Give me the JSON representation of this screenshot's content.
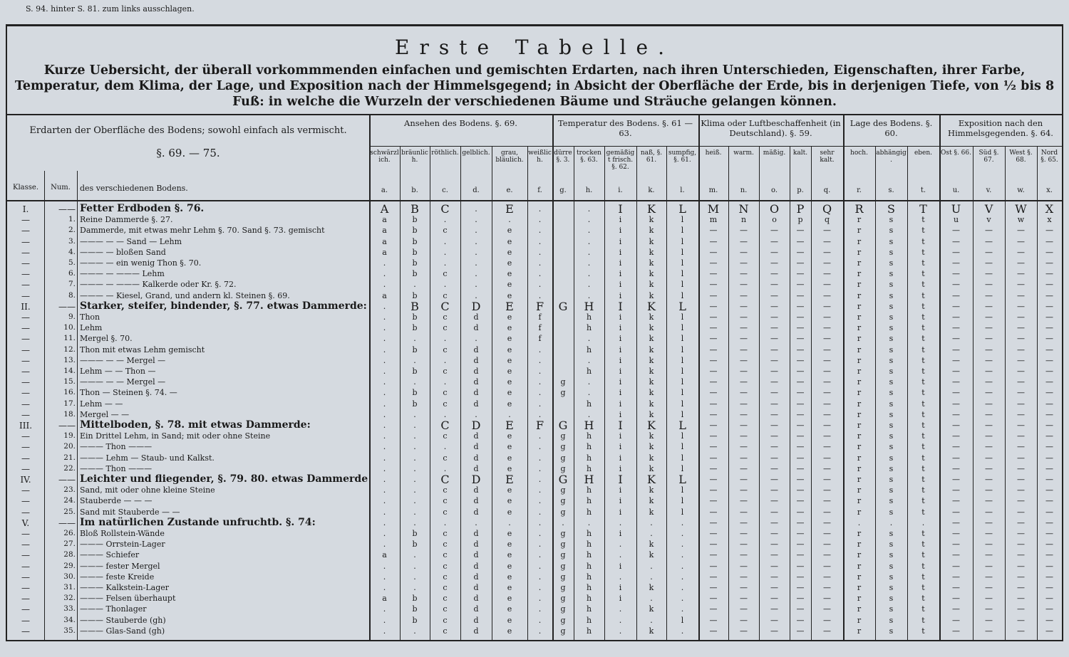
{
  "top_note": "S. 94. hinter S. 81. zum links ausschlagen.",
  "title": "Erste Tabelle.",
  "subtitle": "Kurze Uebersicht, der überall vorkommmenden einfachen und gemischten Erdarten, nach ihren Unterschieden, Eigenschaften, ihrer Farbe, Temperatur, dem Klima, der Lage, und Exposition nach der Himmelsgegend; in Absicht der Oberfläche der Erde, bis in derjenigen Tiefe, von ½ bis 8 Fuß: in welche die Wurzeln der verschiedenen Bäume und Sträuche gelangen können.",
  "left_header": {
    "title": "Erdarten der Oberfläche des Bodens; sowohl einfach als vermischt.",
    "sections": "§. 69. — 75.",
    "klasse": "Klasse.",
    "num": "Num.",
    "desc": "des verschiedenen Bodens."
  },
  "groups": [
    {
      "label": "Ansehen des Bodens. §. 69.",
      "from": 0,
      "to": 6
    },
    {
      "label": "Temperatur des Bodens. §. 61 — 63.",
      "from": 6,
      "to": 11
    },
    {
      "label": "Klima oder Luftbeschaffenheit (in Deutschland). §. 59.",
      "from": 11,
      "to": 16
    },
    {
      "label": "Lage des Bodens. §. 60.",
      "from": 16,
      "to": 19
    },
    {
      "label": "Exposition nach den Himmelsgegenden. §. 64.",
      "from": 19,
      "to": 23
    }
  ],
  "columns": [
    {
      "name": "schwärzlich.",
      "letter": "a."
    },
    {
      "name": "bräunlich.",
      "letter": "b."
    },
    {
      "name": "röthlich.",
      "letter": "c."
    },
    {
      "name": "gelblich.",
      "letter": "d."
    },
    {
      "name": "grau, bläulich.",
      "letter": "e."
    },
    {
      "name": "weißlich.",
      "letter": "f."
    },
    {
      "name": "dürre §. 3.",
      "letter": "g."
    },
    {
      "name": "trocken §. 63.",
      "letter": "h."
    },
    {
      "name": "gemäßigt frisch. §. 62.",
      "letter": "i."
    },
    {
      "name": "naß, §. 61.",
      "letter": "k."
    },
    {
      "name": "sumpfig, §. 61.",
      "letter": "l."
    },
    {
      "name": "heiß.",
      "letter": "m."
    },
    {
      "name": "warm.",
      "letter": "n."
    },
    {
      "name": "mäßig.",
      "letter": "o."
    },
    {
      "name": "kalt.",
      "letter": "p."
    },
    {
      "name": "sehr kalt.",
      "letter": "q."
    },
    {
      "name": "hoch.",
      "letter": "r."
    },
    {
      "name": "abhängig.",
      "letter": "s."
    },
    {
      "name": "eben.",
      "letter": "t."
    },
    {
      "name": "Ost §. 66.",
      "letter": "u."
    },
    {
      "name": "Süd §. 67.",
      "letter": "v."
    },
    {
      "name": "West §. 68.",
      "letter": "w."
    },
    {
      "name": "Nord §. 65.",
      "letter": "x."
    }
  ],
  "rows": [
    {
      "klasse": "I.",
      "num": "——",
      "text": "Fetter Erdboden §. 76.",
      "cells": [
        "A",
        "B",
        "C",
        ".",
        "E",
        ".",
        null,
        ".",
        "I",
        "K",
        "L",
        "M",
        "N",
        "O",
        "P",
        "Q",
        "R",
        "S",
        "T",
        "U",
        "V",
        "W",
        "X"
      ]
    },
    {
      "klasse": "—",
      "num": "1.",
      "text": "Reine Dammerde §. 27.",
      "cells": [
        "a",
        "b",
        ".",
        ".",
        ".",
        ".",
        null,
        ".",
        "i",
        "k",
        "l",
        "m",
        "n",
        "o",
        "p",
        "q",
        "r",
        "s",
        "t",
        "u",
        "v",
        "w",
        "x"
      ]
    },
    {
      "klasse": "—",
      "num": "2.",
      "text": "Dammerde, mit etwas mehr Lehm §. 70. Sand §. 73. gemischt",
      "cells": [
        "a",
        "b",
        "c",
        ".",
        "e",
        ".",
        null,
        ".",
        "i",
        "k",
        "l",
        "—",
        "—",
        "—",
        "—",
        "—",
        "r",
        "s",
        "t",
        "—",
        "—",
        "—",
        "—"
      ]
    },
    {
      "klasse": "—",
      "num": "3.",
      "text": "——— — — Sand — Lehm",
      "cells": [
        "a",
        "b",
        ".",
        ".",
        "e",
        ".",
        null,
        ".",
        "i",
        "k",
        "l",
        "—",
        "—",
        "—",
        "—",
        "—",
        "r",
        "s",
        "t",
        "—",
        "—",
        "—",
        "—"
      ]
    },
    {
      "klasse": "—",
      "num": "4.",
      "text": "——— — bloßen Sand",
      "cells": [
        "a",
        "b",
        ".",
        ".",
        "e",
        ".",
        null,
        ".",
        "i",
        "k",
        "l",
        "—",
        "—",
        "—",
        "—",
        "—",
        "r",
        "s",
        "t",
        "—",
        "—",
        "—",
        "—"
      ]
    },
    {
      "klasse": "—",
      "num": "5.",
      "text": "——— — ein wenig Thon §. 70.",
      "cells": [
        ".",
        "b",
        ".",
        ".",
        "e",
        ".",
        null,
        ".",
        "i",
        "k",
        "l",
        "—",
        "—",
        "—",
        "—",
        "—",
        "r",
        "s",
        "t",
        "—",
        "—",
        "—",
        "—"
      ]
    },
    {
      "klasse": "—",
      "num": "6.",
      "text": "——— — ——— Lehm",
      "cells": [
        ".",
        "b",
        "c",
        ".",
        "e",
        ".",
        null,
        ".",
        "i",
        "k",
        "l",
        "—",
        "—",
        "—",
        "—",
        "—",
        "r",
        "s",
        "t",
        "—",
        "—",
        "—",
        "—"
      ]
    },
    {
      "klasse": "—",
      "num": "7.",
      "text": "——— — ——— Kalkerde oder Kr. §. 72.",
      "cells": [
        ".",
        ".",
        ".",
        ".",
        "e",
        ".",
        null,
        ".",
        "i",
        "k",
        "l",
        "—",
        "—",
        "—",
        "—",
        "—",
        "r",
        "s",
        "t",
        "—",
        "—",
        "—",
        "—"
      ]
    },
    {
      "klasse": "—",
      "num": "8.",
      "text": "——— — Kiesel, Grand, und andern kl. Steinen §. 69.",
      "cells": [
        "a",
        "b",
        "c",
        ".",
        "e",
        ".",
        null,
        ".",
        "i",
        "k",
        "l",
        "—",
        "—",
        "—",
        "—",
        "—",
        "r",
        "s",
        "t",
        "—",
        "—",
        "—",
        "—"
      ]
    },
    {
      "klasse": "II.",
      "num": "——",
      "text": "Starker, steifer, bindender, §. 77. etwas Dammerde:",
      "cells": [
        ".",
        "B",
        "C",
        "D",
        "E",
        "F",
        "G",
        "H",
        "I",
        "K",
        "L",
        "—",
        "—",
        "—",
        "—",
        "—",
        "r",
        "s",
        "t",
        "—",
        "—",
        "—",
        "—"
      ]
    },
    {
      "klasse": "—",
      "num": "9.",
      "text": "Thon",
      "cells": [
        ".",
        "b",
        "c",
        "d",
        "e",
        "f",
        null,
        "h",
        "i",
        "k",
        "l",
        "—",
        "—",
        "—",
        "—",
        "—",
        "r",
        "s",
        "t",
        "—",
        "—",
        "—",
        "—"
      ]
    },
    {
      "klasse": "—",
      "num": "10.",
      "text": "Lehm",
      "cells": [
        ".",
        "b",
        "c",
        "d",
        "e",
        "f",
        null,
        "h",
        "i",
        "k",
        "l",
        "—",
        "—",
        "—",
        "—",
        "—",
        "r",
        "s",
        "t",
        "—",
        "—",
        "—",
        "—"
      ]
    },
    {
      "klasse": "—",
      "num": "11.",
      "text": "Mergel §. 70.",
      "cells": [
        ".",
        ".",
        ".",
        ".",
        "e",
        "f",
        null,
        ".",
        "i",
        "k",
        "l",
        "—",
        "—",
        "—",
        "—",
        "—",
        "r",
        "s",
        "t",
        "—",
        "—",
        "—",
        "—"
      ]
    },
    {
      "klasse": "—",
      "num": "12.",
      "text": "Thon mit etwas Lehm gemischt",
      "cells": [
        ".",
        "b",
        "c",
        "d",
        "e",
        ".",
        null,
        "h",
        "i",
        "k",
        "l",
        "—",
        "—",
        "—",
        "—",
        "—",
        "r",
        "s",
        "t",
        "—",
        "—",
        "—",
        "—"
      ]
    },
    {
      "klasse": "—",
      "num": "13.",
      "text": "——— — — Mergel —",
      "cells": [
        ".",
        ".",
        ".",
        "d",
        "e",
        ".",
        null,
        ".",
        "i",
        "k",
        "l",
        "—",
        "—",
        "—",
        "—",
        "—",
        "r",
        "s",
        "t",
        "—",
        "—",
        "—",
        "—"
      ]
    },
    {
      "klasse": "—",
      "num": "14.",
      "text": "Lehm — — Thon —",
      "cells": [
        ".",
        "b",
        "c",
        "d",
        "e",
        ".",
        null,
        "h",
        "i",
        "k",
        "l",
        "—",
        "—",
        "—",
        "—",
        "—",
        "r",
        "s",
        "t",
        "—",
        "—",
        "—",
        "—"
      ]
    },
    {
      "klasse": "—",
      "num": "15.",
      "text": "——— — — Mergel —",
      "cells": [
        ".",
        ".",
        ".",
        "d",
        "e",
        ".",
        "g",
        ".",
        "i",
        "k",
        "l",
        "—",
        "—",
        "—",
        "—",
        "—",
        "r",
        "s",
        "t",
        "—",
        "—",
        "—",
        "—"
      ]
    },
    {
      "klasse": "—",
      "num": "16.",
      "text": "Thon — Steinen §. 74. —",
      "cells": [
        ".",
        "b",
        "c",
        "d",
        "e",
        ".",
        "g",
        ".",
        "i",
        "k",
        "l",
        "—",
        "—",
        "—",
        "—",
        "—",
        "r",
        "s",
        "t",
        "—",
        "—",
        "—",
        "—"
      ]
    },
    {
      "klasse": "—",
      "num": "17.",
      "text": "Lehm — —",
      "cells": [
        ".",
        "b",
        "c",
        "d",
        "e",
        ".",
        null,
        "h",
        "i",
        "k",
        "l",
        "—",
        "—",
        "—",
        "—",
        "—",
        "r",
        "s",
        "t",
        "—",
        "—",
        "—",
        "—"
      ]
    },
    {
      "klasse": "—",
      "num": "18.",
      "text": "Mergel — —",
      "cells": [
        ".",
        ".",
        ".",
        ".",
        ".",
        ".",
        null,
        ".",
        "i",
        "k",
        "l",
        "—",
        "—",
        "—",
        "—",
        "—",
        "r",
        "s",
        "t",
        "—",
        "—",
        "—",
        "—"
      ]
    },
    {
      "klasse": "III.",
      "num": "——",
      "text": "Mittelboden, §. 78. mit etwas Dammerde:",
      "cells": [
        ".",
        ".",
        "C",
        "D",
        "E",
        "F",
        "G",
        "H",
        "I",
        "K",
        "L",
        "—",
        "—",
        "—",
        "—",
        "—",
        "r",
        "s",
        "t",
        "—",
        "—",
        "—",
        "—"
      ]
    },
    {
      "klasse": "—",
      "num": "19.",
      "text": "Ein Drittel Lehm, in Sand; mit oder ohne Steine",
      "cells": [
        ".",
        ".",
        "c",
        "d",
        "e",
        ".",
        "g",
        "h",
        "i",
        "k",
        "l",
        "—",
        "—",
        "—",
        "—",
        "—",
        "r",
        "s",
        "t",
        "—",
        "—",
        "—",
        "—"
      ]
    },
    {
      "klasse": "—",
      "num": "20.",
      "text": "——— Thon ———",
      "cells": [
        ".",
        ".",
        ".",
        "d",
        "e",
        ".",
        "g",
        "h",
        "i",
        "k",
        "l",
        "—",
        "—",
        "—",
        "—",
        "—",
        "r",
        "s",
        "t",
        "—",
        "—",
        "—",
        "—"
      ]
    },
    {
      "klasse": "—",
      "num": "21.",
      "text": "——— Lehm — Staub- und Kalkst.",
      "cells": [
        ".",
        ".",
        "c",
        "d",
        "e",
        ".",
        "g",
        "h",
        "i",
        "k",
        "l",
        "—",
        "—",
        "—",
        "—",
        "—",
        "r",
        "s",
        "t",
        "—",
        "—",
        "—",
        "—"
      ]
    },
    {
      "klasse": "—",
      "num": "22.",
      "text": "——— Thon ———",
      "cells": [
        ".",
        ".",
        ".",
        "d",
        "e",
        ".",
        "g",
        "h",
        "i",
        "k",
        "l",
        "—",
        "—",
        "—",
        "—",
        "—",
        "r",
        "s",
        "t",
        "—",
        "—",
        "—",
        "—"
      ]
    },
    {
      "klasse": "IV.",
      "num": "——",
      "text": "Leichter und fliegender, §. 79. 80. etwas Dammerde:",
      "cells": [
        ".",
        ".",
        "C",
        "D",
        "E",
        ".",
        "G",
        "H",
        "I",
        "K",
        "L",
        "—",
        "—",
        "—",
        "—",
        "—",
        "r",
        "s",
        "t",
        "—",
        "—",
        "—",
        "—"
      ]
    },
    {
      "klasse": "—",
      "num": "23.",
      "text": "Sand, mit oder ohne kleine Steine",
      "cells": [
        ".",
        ".",
        "c",
        "d",
        "e",
        ".",
        "g",
        "h",
        "i",
        "k",
        "l",
        "—",
        "—",
        "—",
        "—",
        "—",
        "r",
        "s",
        "t",
        "—",
        "—",
        "—",
        "—"
      ]
    },
    {
      "klasse": "—",
      "num": "24.",
      "text": "Stauberde — — —",
      "cells": [
        ".",
        ".",
        "c",
        "d",
        "e",
        ".",
        "g",
        "h",
        "i",
        "k",
        "l",
        "—",
        "—",
        "—",
        "—",
        "—",
        "r",
        "s",
        "t",
        "—",
        "—",
        "—",
        "—"
      ]
    },
    {
      "klasse": "—",
      "num": "25.",
      "text": "Sand mit Stauberde — —",
      "cells": [
        ".",
        ".",
        "c",
        "d",
        "e",
        ".",
        "g",
        "h",
        "i",
        "k",
        "l",
        "—",
        "—",
        "—",
        "—",
        "—",
        "r",
        "s",
        "t",
        "—",
        "—",
        "—",
        "—"
      ]
    },
    {
      "klasse": "V.",
      "num": "——",
      "text": "Im natürlichen Zustande unfruchtb. §. 74:",
      "cells": [
        ".",
        ".",
        ".",
        ".",
        ".",
        ".",
        ".",
        ".",
        ".",
        ".",
        ".",
        "—",
        "—",
        "—",
        "—",
        "—",
        ".",
        ".",
        ".",
        "—",
        "—",
        "—",
        "—"
      ]
    },
    {
      "klasse": "—",
      "num": "26.",
      "text": "Bloß Rollstein-Wände",
      "cells": [
        ".",
        "b",
        "c",
        "d",
        "e",
        ".",
        "g",
        "h",
        "i",
        ".",
        ".",
        "—",
        "—",
        "—",
        "—",
        "—",
        "r",
        "s",
        "t",
        "—",
        "—",
        "—",
        "—"
      ]
    },
    {
      "klasse": "—",
      "num": "27.",
      "text": "——— Orrstein-Lager",
      "cells": [
        ".",
        "b",
        "c",
        "d",
        "e",
        ".",
        "g",
        "h",
        ".",
        "k",
        ".",
        "—",
        "—",
        "—",
        "—",
        "—",
        "r",
        "s",
        "t",
        "—",
        "—",
        "—",
        "—"
      ]
    },
    {
      "klasse": "—",
      "num": "28.",
      "text": "——— Schiefer",
      "cells": [
        "a",
        ".",
        "c",
        "d",
        "e",
        ".",
        "g",
        "h",
        ".",
        "k",
        ".",
        "—",
        "—",
        "—",
        "—",
        "—",
        "r",
        "s",
        "t",
        "—",
        "—",
        "—",
        "—"
      ]
    },
    {
      "klasse": "—",
      "num": "29.",
      "text": "——— fester Mergel",
      "cells": [
        ".",
        ".",
        "c",
        "d",
        "e",
        ".",
        "g",
        "h",
        "i",
        ".",
        ".",
        "—",
        "—",
        "—",
        "—",
        "—",
        "r",
        "s",
        "t",
        "—",
        "—",
        "—",
        "—"
      ]
    },
    {
      "klasse": "—",
      "num": "30.",
      "text": "——— feste Kreide",
      "cells": [
        ".",
        ".",
        "c",
        "d",
        "e",
        ".",
        "g",
        "h",
        ".",
        ".",
        ".",
        "—",
        "—",
        "—",
        "—",
        "—",
        "r",
        "s",
        "t",
        "—",
        "—",
        "—",
        "—"
      ]
    },
    {
      "klasse": "—",
      "num": "31.",
      "text": "——— Kalkstein-Lager",
      "cells": [
        ".",
        ".",
        "c",
        "d",
        "e",
        ".",
        "g",
        "h",
        "i",
        "k",
        ".",
        "—",
        "—",
        "—",
        "—",
        "—",
        "r",
        "s",
        "t",
        "—",
        "—",
        "—",
        "—"
      ]
    },
    {
      "klasse": "—",
      "num": "32.",
      "text": "——— Felsen überhaupt",
      "cells": [
        "a",
        "b",
        "c",
        "d",
        "e",
        ".",
        "g",
        "h",
        "i",
        ".",
        ".",
        "—",
        "—",
        "—",
        "—",
        "—",
        "r",
        "s",
        "t",
        "—",
        "—",
        "—",
        "—"
      ]
    },
    {
      "klasse": "—",
      "num": "33.",
      "text": "——— Thonlager",
      "cells": [
        ".",
        "b",
        "c",
        "d",
        "e",
        ".",
        "g",
        "h",
        ".",
        "k",
        ".",
        "—",
        "—",
        "—",
        "—",
        "—",
        "r",
        "s",
        "t",
        "—",
        "—",
        "—",
        "—"
      ]
    },
    {
      "klasse": "—",
      "num": "34.",
      "text": "——— Stauberde (gh)",
      "cells": [
        ".",
        "b",
        "c",
        "d",
        "e",
        ".",
        "g",
        "h",
        ".",
        ".",
        "l",
        "—",
        "—",
        "—",
        "—",
        "—",
        "r",
        "s",
        "t",
        "—",
        "—",
        "—",
        "—"
      ]
    },
    {
      "klasse": "—",
      "num": "35.",
      "text": "——— Glas-Sand (gh)",
      "cells": [
        ".",
        ".",
        "c",
        "d",
        "e",
        ".",
        "g",
        "h",
        ".",
        "k",
        ".",
        "—",
        "—",
        "—",
        "—",
        "—",
        "r",
        "s",
        "t",
        "—",
        "—",
        "—",
        "—"
      ]
    }
  ]
}
